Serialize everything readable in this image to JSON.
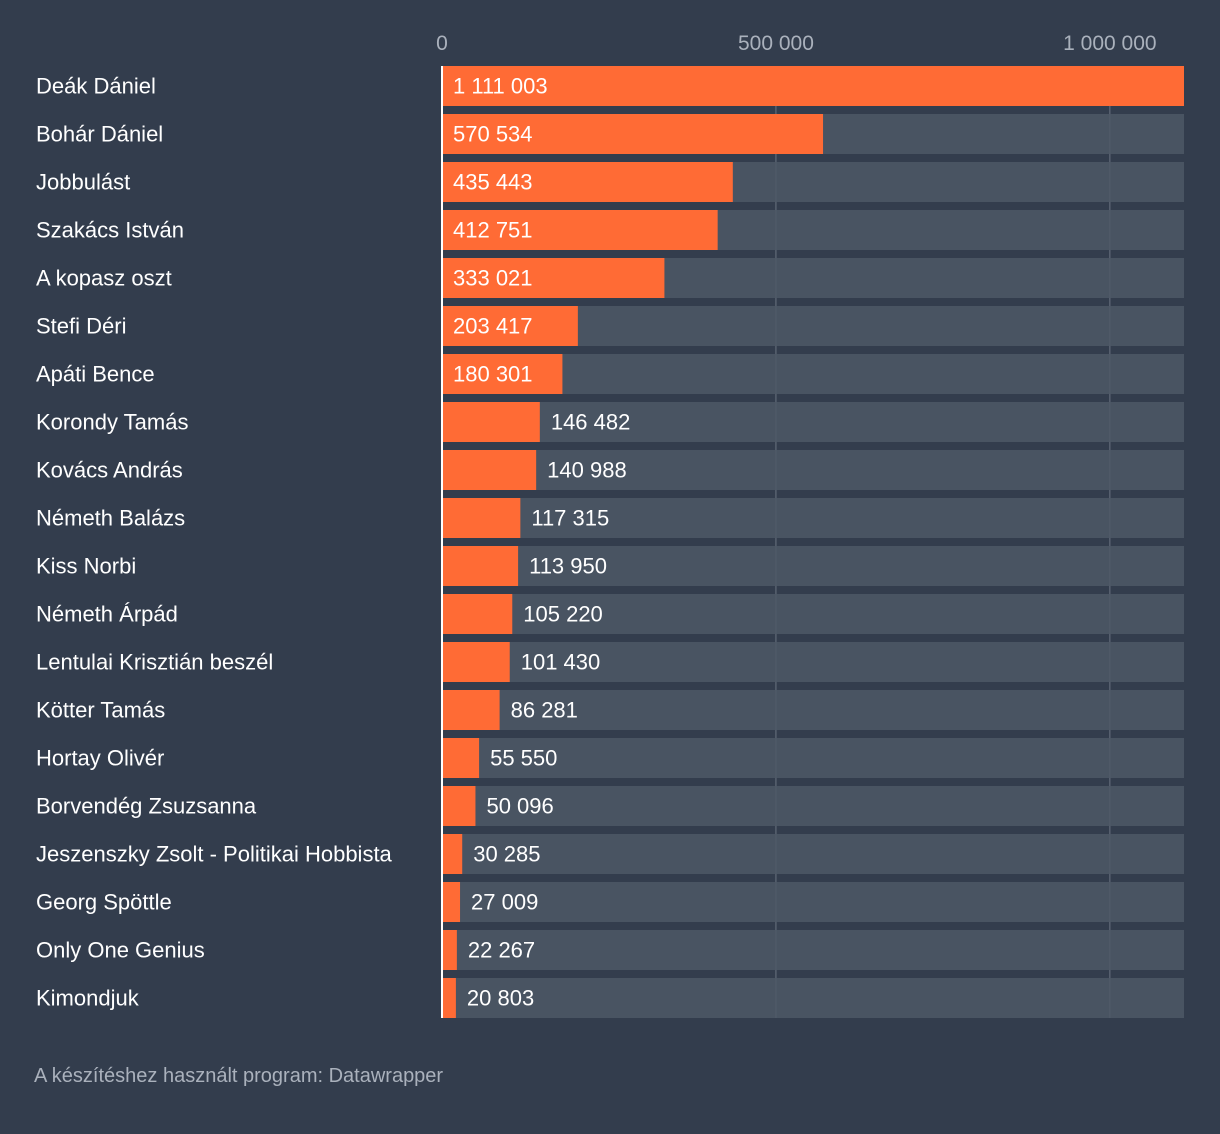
{
  "chart_data": {
    "type": "bar",
    "orientation": "horizontal",
    "categories": [
      "Deák Dániel",
      "Bohár Dániel",
      "Jobbulást",
      "Szakács István",
      "A kopasz oszt",
      "Stefi Déri",
      "Apáti Bence",
      "Korondy Tamás",
      "Kovács András",
      "Németh Balázs",
      "Kiss Norbi",
      "Németh Árpád",
      "Lentulai Krisztián beszél",
      "Kötter Tamás",
      "Hortay Olivér",
      "Borvendég Zsuzsanna",
      "Jeszenszky Zsolt - Politikai Hobbista",
      "Georg Spöttle",
      "Only One Genius",
      "Kimondjuk"
    ],
    "values": [
      1111003,
      570534,
      435443,
      412751,
      333021,
      203417,
      180301,
      146482,
      140988,
      117315,
      113950,
      105220,
      101430,
      86281,
      55550,
      50096,
      30285,
      27009,
      22267,
      20803
    ],
    "value_labels": [
      "1 111 003",
      "570 534",
      "435 443",
      "412 751",
      "333 021",
      "203 417",
      "180 301",
      "146 482",
      "140 988",
      "117 315",
      "113 950",
      "105 220",
      "101 430",
      "86 281",
      "55 550",
      "50 096",
      "30 285",
      "27 009",
      "22 267",
      "20 803"
    ],
    "xlim": [
      0,
      1111003
    ],
    "ticks": [
      0,
      500000,
      1000000
    ],
    "tick_labels": [
      "0",
      "500 000",
      "1 000 000"
    ],
    "grid": true,
    "colors": {
      "background": "#333d4d",
      "bar": "#ff6b35",
      "track": "#4e5866",
      "gridline": "#6a7381",
      "text": "#ffffff",
      "muted_text": "#aab1bc"
    }
  },
  "footer": {
    "note": "A készítéshez használt program: Datawrapper"
  }
}
